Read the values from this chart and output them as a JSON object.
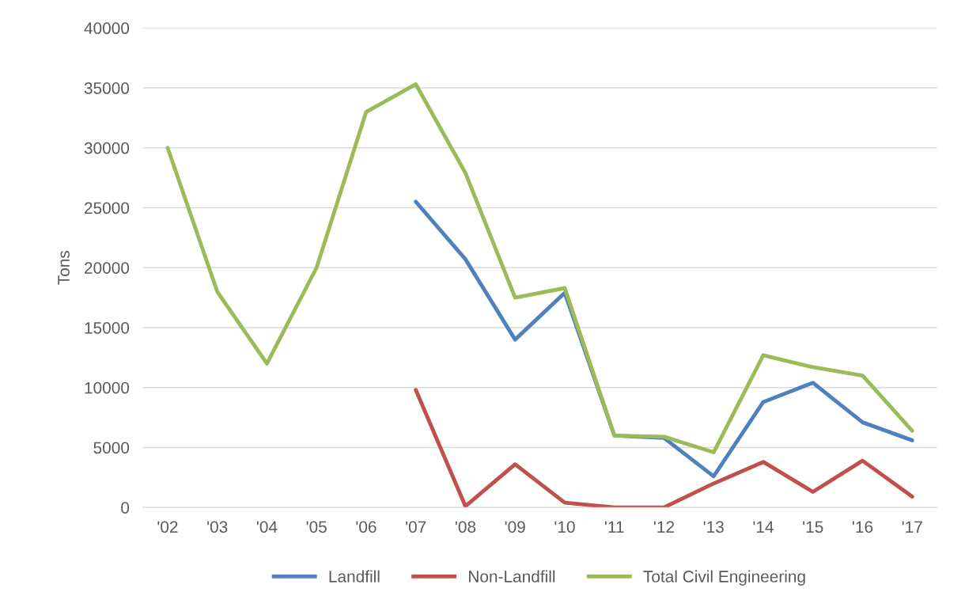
{
  "chart_data": {
    "type": "line",
    "ylabel": "Tons",
    "categories": [
      "'02",
      "'03",
      "'04",
      "'05",
      "'06",
      "'07",
      "'08",
      "'09",
      "'10",
      "'11",
      "'12",
      "'13",
      "'14",
      "'15",
      "'16",
      "'17"
    ],
    "series": [
      {
        "name": "Landfill",
        "color": "#4f81bd",
        "values": [
          null,
          null,
          null,
          null,
          null,
          25500,
          20700,
          14000,
          17900,
          6000,
          5800,
          2600,
          8800,
          10400,
          7100,
          5600
        ]
      },
      {
        "name": "Non-Landfill",
        "color": "#c0504d",
        "values": [
          null,
          null,
          null,
          null,
          null,
          9800,
          100,
          3600,
          400,
          0,
          0,
          2000,
          3800,
          1300,
          3900,
          900
        ]
      },
      {
        "name": "Total Civil Engineering",
        "color": "#9bbb59",
        "values": [
          30000,
          18000,
          12000,
          20000,
          33000,
          35300,
          27900,
          17500,
          18300,
          6000,
          5900,
          4600,
          12700,
          11700,
          11000,
          6400
        ]
      }
    ],
    "ylim": [
      0,
      40000
    ],
    "yticks": [
      0,
      5000,
      10000,
      15000,
      20000,
      25000,
      30000,
      35000,
      40000
    ],
    "grid": "y",
    "legend": "bottom",
    "marker": "none",
    "line_style": "solid"
  }
}
